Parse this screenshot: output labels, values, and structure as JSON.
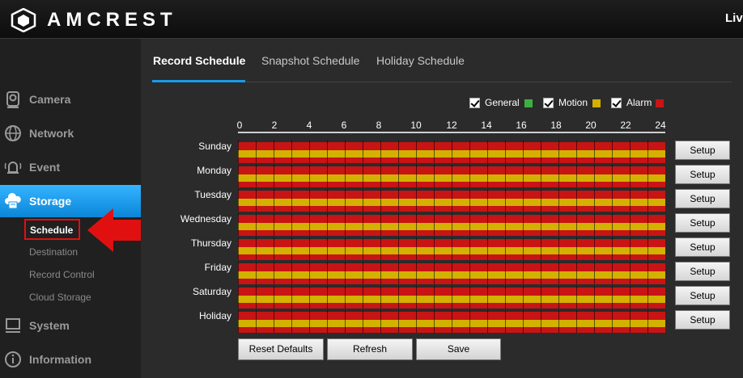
{
  "header": {
    "brand": "AMCREST",
    "live_link": "Liv"
  },
  "sidebar": {
    "items": [
      {
        "label": "Camera",
        "icon": "camera-icon"
      },
      {
        "label": "Network",
        "icon": "globe-icon"
      },
      {
        "label": "Event",
        "icon": "alarm-bell-icon"
      },
      {
        "label": "Storage",
        "icon": "cloud-storage-icon",
        "active": true
      },
      {
        "label": "System",
        "icon": "monitor-icon"
      },
      {
        "label": "Information",
        "icon": "info-icon"
      }
    ],
    "storage_sub": [
      "Schedule",
      "Destination",
      "Record Control",
      "Cloud Storage"
    ]
  },
  "tabs": [
    "Record Schedule",
    "Snapshot Schedule",
    "Holiday Schedule"
  ],
  "legend": [
    {
      "label": "General",
      "color": "#3cb043",
      "checked": true
    },
    {
      "label": "Motion",
      "color": "#d2b100",
      "checked": true
    },
    {
      "label": "Alarm",
      "color": "#c81414",
      "checked": true
    }
  ],
  "hours": [
    "0",
    "2",
    "4",
    "6",
    "8",
    "10",
    "12",
    "14",
    "16",
    "18",
    "20",
    "22",
    "24"
  ],
  "days": [
    "Sunday",
    "Monday",
    "Tuesday",
    "Wednesday",
    "Thursday",
    "Friday",
    "Saturday",
    "Holiday"
  ],
  "setup_label": "Setup",
  "buttons": {
    "reset": "Reset Defaults",
    "refresh": "Refresh",
    "save": "Save"
  },
  "colors": {
    "accent": "#1a9ae8",
    "highlight": "#e01010"
  }
}
